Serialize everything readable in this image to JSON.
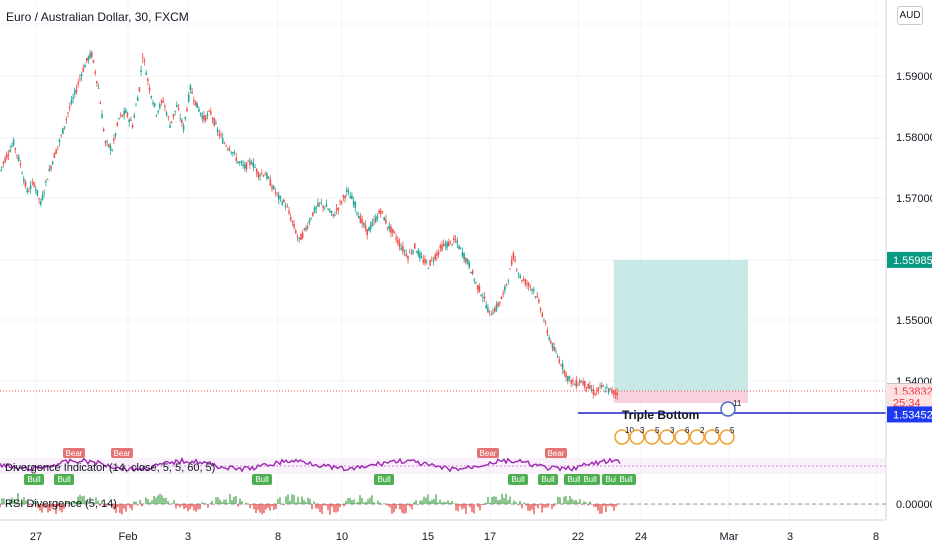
{
  "symbol_title": "Euro / Australian Dollar, 30, FXCM",
  "currency_button": "AUD",
  "colors": {
    "up": "#26a69a",
    "down": "#ef5350",
    "target": "#b2dfdb",
    "stop": "#f8bbd0",
    "level": "#1e22c8",
    "axis_text": "#131722",
    "divergence": "#9c27b0",
    "rsi_up": "#43a047",
    "rsi_down": "#e53935",
    "bull_label": "#4caf50",
    "bear_label": "#e57373"
  },
  "chart_data": [
    {
      "type": "line",
      "title": "Euro / Australian Dollar, 30, FXCM",
      "xlabel": "",
      "ylabel": "",
      "x_tick_labels": [
        "27",
        "Feb",
        "3",
        "8",
        "10",
        "15",
        "17",
        "22",
        "24",
        "Mar",
        "3",
        "8"
      ],
      "y_tick_labels": [
        "1.59000",
        "1.58000",
        "1.57000",
        "1.55000",
        "1.54000"
      ],
      "ylim": [
        1.5335,
        1.5955
      ],
      "price_labels": [
        {
          "text": "1.55985",
          "value": 1.55985,
          "color": "#089981"
        },
        {
          "text": "1.53836",
          "value": 1.53836,
          "color": "#4a4f5a"
        },
        {
          "text": "1.53832",
          "value": 1.53832,
          "color": "#f23645",
          "bg": "#fde2e4"
        },
        {
          "text": "25:34",
          "value": 1.5365,
          "color": "#f23645",
          "bg": "#fde2e4"
        },
        {
          "text": "1.53452",
          "value": 1.53452,
          "color": "#1e3af0"
        }
      ],
      "series": [
        {
          "values": [
            [
              0,
              1.5745
            ],
            [
              2,
              1.577
            ],
            [
              4,
              1.579
            ],
            [
              6,
              1.5755
            ],
            [
              8,
              1.571
            ],
            [
              10,
              1.5725
            ],
            [
              12,
              1.569
            ],
            [
              14,
              1.5735
            ],
            [
              16,
              1.577
            ],
            [
              18,
              1.58
            ],
            [
              20,
              1.584
            ],
            [
              22,
              1.587
            ],
            [
              24,
              1.5905
            ],
            [
              26,
              1.593
            ],
            [
              27,
              1.5935
            ],
            [
              29,
              1.588
            ],
            [
              31,
              1.579
            ],
            [
              33,
              1.578
            ],
            [
              35,
              1.583
            ],
            [
              37,
              1.584
            ],
            [
              39,
              1.582
            ],
            [
              41,
              1.588
            ],
            [
              42,
              1.5935
            ],
            [
              44,
              1.588
            ],
            [
              46,
              1.584
            ],
            [
              48,
              1.586
            ],
            [
              50,
              1.582
            ],
            [
              52,
              1.585
            ],
            [
              54,
              1.5815
            ],
            [
              56,
              1.588
            ],
            [
              58,
              1.585
            ],
            [
              60,
              1.583
            ],
            [
              62,
              1.584
            ],
            [
              64,
              1.581
            ],
            [
              66,
              1.579
            ],
            [
              68,
              1.578
            ],
            [
              70,
              1.576
            ],
            [
              72,
              1.575
            ],
            [
              74,
              1.576
            ],
            [
              76,
              1.574
            ],
            [
              78,
              1.574
            ],
            [
              80,
              1.572
            ],
            [
              82,
              1.57
            ],
            [
              84,
              1.569
            ],
            [
              86,
              1.566
            ],
            [
              88,
              1.563
            ],
            [
              90,
              1.565
            ],
            [
              92,
              1.5675
            ],
            [
              94,
              1.569
            ],
            [
              96,
              1.5685
            ],
            [
              98,
              1.567
            ],
            [
              100,
              1.569
            ],
            [
              102,
              1.571
            ],
            [
              104,
              1.5695
            ],
            [
              106,
              1.5665
            ],
            [
              108,
              1.5645
            ],
            [
              110,
              1.566
            ],
            [
              112,
              1.568
            ],
            [
              114,
              1.5655
            ],
            [
              116,
              1.564
            ],
            [
              118,
              1.562
            ],
            [
              120,
              1.5605
            ],
            [
              122,
              1.562
            ],
            [
              124,
              1.56
            ],
            [
              126,
              1.559
            ],
            [
              128,
              1.5605
            ],
            [
              130,
              1.562
            ],
            [
              132,
              1.5625
            ],
            [
              134,
              1.563
            ],
            [
              136,
              1.561
            ],
            [
              138,
              1.559
            ],
            [
              140,
              1.556
            ],
            [
              142,
              1.554
            ],
            [
              144,
              1.551
            ],
            [
              146,
              1.552
            ],
            [
              148,
              1.554
            ],
            [
              150,
              1.558
            ],
            [
              151,
              1.5605
            ],
            [
              153,
              1.557
            ],
            [
              155,
              1.556
            ],
            [
              157,
              1.555
            ],
            [
              159,
              1.552
            ],
            [
              161,
              1.548
            ],
            [
              163,
              1.545
            ],
            [
              165,
              1.543
            ],
            [
              167,
              1.5405
            ],
            [
              169,
              1.5395
            ],
            [
              171,
              1.54
            ],
            [
              173,
              1.539
            ],
            [
              175,
              1.538
            ],
            [
              177,
              1.539
            ],
            [
              179,
              1.5385
            ],
            [
              181,
              1.538
            ],
            [
              182,
              1.5383
            ]
          ]
        }
      ],
      "position_tool": {
        "type": "long",
        "target": 1.55985,
        "entry": 1.53836,
        "stop": 1.5364,
        "bar_start": 180.5,
        "bar_end": 220
      }
    },
    {
      "type": "line",
      "indicators": [
        {
          "label": "Divergence Indicator (14, close, 5, 5, 60, 5)",
          "color": "#9c27b0"
        },
        {
          "label": "RSI Divergence (5, 14)",
          "color": "#43a047"
        }
      ],
      "rsi_zero_label": "0.00000",
      "markers": {
        "bear": [
          "Bear",
          "Bear",
          "Bear",
          "Bear"
        ],
        "bull": [
          "Bull",
          "Bull",
          "Bull",
          "Bull",
          "Bull",
          "Bull",
          "Bull",
          "Bull",
          "Bull",
          "Bull"
        ]
      }
    }
  ],
  "pattern": {
    "name": "Triple Bottom",
    "badge_numbers": [
      "10",
      "3",
      "5",
      "3",
      "6",
      "2",
      "5",
      "5"
    ],
    "top_badge": "11"
  }
}
